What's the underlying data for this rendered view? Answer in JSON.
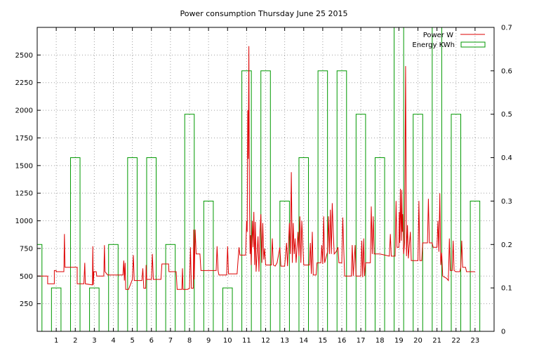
{
  "chart_data": {
    "type": "line",
    "title": "Power consumption Thursday June 25 2015",
    "x_ticks": [
      1,
      2,
      3,
      4,
      5,
      6,
      7,
      8,
      9,
      10,
      11,
      12,
      13,
      14,
      15,
      16,
      17,
      18,
      19,
      20,
      21,
      22,
      23
    ],
    "xlim": [
      0,
      24
    ],
    "ylim": [
      0,
      2750
    ],
    "y_ticks": [
      250,
      500,
      750,
      1000,
      1250,
      1500,
      1750,
      2000,
      2250,
      2500
    ],
    "y2lim": [
      0,
      0.7
    ],
    "y2_ticks": [
      0,
      0.1,
      0.2,
      0.3,
      0.4,
      0.5,
      0.6,
      0.7
    ],
    "grid": true,
    "legend_position": "top-right",
    "colors": {
      "power": "#dd0000",
      "energy": "#009900"
    },
    "series": [
      {
        "name": "Power W",
        "type": "line",
        "axis": "left",
        "points": [
          [
            0.0,
            500
          ],
          [
            0.55,
            500
          ],
          [
            0.55,
            430
          ],
          [
            0.9,
            430
          ],
          [
            0.9,
            550
          ],
          [
            1.0,
            550
          ],
          [
            1.0,
            540
          ],
          [
            1.4,
            540
          ],
          [
            1.43,
            880
          ],
          [
            1.46,
            580
          ],
          [
            2.1,
            580
          ],
          [
            2.1,
            430
          ],
          [
            2.45,
            430
          ],
          [
            2.5,
            620
          ],
          [
            2.53,
            430
          ],
          [
            2.9,
            420
          ],
          [
            2.92,
            770
          ],
          [
            2.95,
            420
          ],
          [
            2.98,
            540
          ],
          [
            3.1,
            540
          ],
          [
            3.13,
            500
          ],
          [
            3.5,
            500
          ],
          [
            3.53,
            780
          ],
          [
            3.56,
            540
          ],
          [
            3.7,
            510
          ],
          [
            4.2,
            510
          ],
          [
            4.5,
            510
          ],
          [
            4.55,
            640
          ],
          [
            4.58,
            460
          ],
          [
            4.62,
            620
          ],
          [
            4.65,
            380
          ],
          [
            4.8,
            380
          ],
          [
            5.0,
            470
          ],
          [
            5.05,
            690
          ],
          [
            5.1,
            460
          ],
          [
            5.5,
            460
          ],
          [
            5.55,
            570
          ],
          [
            5.6,
            390
          ],
          [
            5.7,
            390
          ],
          [
            5.72,
            600
          ],
          [
            5.75,
            470
          ],
          [
            6.0,
            470
          ],
          [
            6.05,
            700
          ],
          [
            6.1,
            470
          ],
          [
            6.5,
            470
          ],
          [
            6.55,
            610
          ],
          [
            6.9,
            610
          ],
          [
            6.92,
            540
          ],
          [
            7.3,
            540
          ],
          [
            7.35,
            380
          ],
          [
            7.6,
            380
          ],
          [
            7.63,
            570
          ],
          [
            7.66,
            380
          ],
          [
            7.9,
            380
          ],
          [
            8.0,
            390
          ],
          [
            8.05,
            760
          ],
          [
            8.1,
            390
          ],
          [
            8.2,
            390
          ],
          [
            8.22,
            920
          ],
          [
            8.25,
            470
          ],
          [
            8.3,
            920
          ],
          [
            8.35,
            700
          ],
          [
            8.55,
            700
          ],
          [
            8.6,
            550
          ],
          [
            9.4,
            550
          ],
          [
            9.45,
            770
          ],
          [
            9.5,
            550
          ],
          [
            9.55,
            510
          ],
          [
            9.95,
            510
          ],
          [
            10.0,
            770
          ],
          [
            10.05,
            520
          ],
          [
            10.5,
            520
          ],
          [
            10.6,
            760
          ],
          [
            10.65,
            690
          ],
          [
            10.95,
            690
          ],
          [
            11.0,
            1000
          ],
          [
            11.03,
            900
          ],
          [
            11.06,
            2000
          ],
          [
            11.09,
            1560
          ],
          [
            11.12,
            2580
          ],
          [
            11.15,
            1200
          ],
          [
            11.18,
            700
          ],
          [
            11.21,
            870
          ],
          [
            11.24,
            600
          ],
          [
            11.3,
            1000
          ],
          [
            11.34,
            760
          ],
          [
            11.38,
            1080
          ],
          [
            11.42,
            600
          ],
          [
            11.46,
            990
          ],
          [
            11.5,
            540
          ],
          [
            11.55,
            700
          ],
          [
            11.6,
            860
          ],
          [
            11.65,
            540
          ],
          [
            11.7,
            900
          ],
          [
            11.75,
            1060
          ],
          [
            11.8,
            620
          ],
          [
            11.85,
            980
          ],
          [
            11.9,
            650
          ],
          [
            11.95,
            750
          ],
          [
            12.0,
            600
          ],
          [
            12.3,
            600
          ],
          [
            12.35,
            840
          ],
          [
            12.4,
            600
          ],
          [
            12.5,
            590
          ],
          [
            12.6,
            620
          ],
          [
            12.75,
            760
          ],
          [
            12.8,
            590
          ],
          [
            13.0,
            590
          ],
          [
            13.1,
            800
          ],
          [
            13.15,
            590
          ],
          [
            13.25,
            980
          ],
          [
            13.3,
            700
          ],
          [
            13.35,
            1440
          ],
          [
            13.4,
            620
          ],
          [
            13.45,
            980
          ],
          [
            13.5,
            700
          ],
          [
            13.55,
            840
          ],
          [
            13.6,
            620
          ],
          [
            13.7,
            900
          ],
          [
            13.75,
            680
          ],
          [
            13.8,
            1040
          ],
          [
            13.85,
            620
          ],
          [
            13.9,
            1000
          ],
          [
            14.0,
            600
          ],
          [
            14.3,
            600
          ],
          [
            14.35,
            800
          ],
          [
            14.4,
            520
          ],
          [
            14.45,
            900
          ],
          [
            14.5,
            510
          ],
          [
            14.65,
            510
          ],
          [
            14.7,
            620
          ],
          [
            14.9,
            620
          ],
          [
            14.95,
            780
          ],
          [
            15.0,
            610
          ],
          [
            15.05,
            1040
          ],
          [
            15.1,
            620
          ],
          [
            15.25,
            720
          ],
          [
            15.3,
            1040
          ],
          [
            15.35,
            700
          ],
          [
            15.4,
            1100
          ],
          [
            15.45,
            700
          ],
          [
            15.5,
            1160
          ],
          [
            15.55,
            900
          ],
          [
            15.6,
            700
          ],
          [
            15.7,
            720
          ],
          [
            15.8,
            760
          ],
          [
            15.85,
            620
          ],
          [
            16.0,
            620
          ],
          [
            16.05,
            1030
          ],
          [
            16.1,
            760
          ],
          [
            16.15,
            500
          ],
          [
            16.5,
            500
          ],
          [
            16.55,
            780
          ],
          [
            16.6,
            500
          ],
          [
            16.7,
            780
          ],
          [
            16.75,
            500
          ],
          [
            17.0,
            500
          ],
          [
            17.05,
            820
          ],
          [
            17.1,
            490
          ],
          [
            17.15,
            840
          ],
          [
            17.2,
            500
          ],
          [
            17.25,
            620
          ],
          [
            17.5,
            620
          ],
          [
            17.55,
            1130
          ],
          [
            17.6,
            700
          ],
          [
            17.65,
            1040
          ],
          [
            17.7,
            700
          ],
          [
            17.8,
            700
          ],
          [
            18.0,
            700
          ],
          [
            18.5,
            680
          ],
          [
            18.55,
            880
          ],
          [
            18.6,
            680
          ],
          [
            18.8,
            680
          ],
          [
            18.85,
            1180
          ],
          [
            18.9,
            760
          ],
          [
            19.0,
            760
          ],
          [
            19.02,
            1080
          ],
          [
            19.05,
            800
          ],
          [
            19.08,
            1290
          ],
          [
            19.1,
            1050
          ],
          [
            19.13,
            820
          ],
          [
            19.15,
            1280
          ],
          [
            19.18,
            900
          ],
          [
            19.2,
            1060
          ],
          [
            19.25,
            700
          ],
          [
            19.3,
            800
          ],
          [
            19.35,
            2400
          ],
          [
            19.4,
            680
          ],
          [
            19.45,
            960
          ],
          [
            19.5,
            660
          ],
          [
            19.6,
            900
          ],
          [
            19.65,
            640
          ],
          [
            20.0,
            640
          ],
          [
            20.05,
            1180
          ],
          [
            20.1,
            640
          ],
          [
            20.2,
            640
          ],
          [
            20.25,
            800
          ],
          [
            20.5,
            800
          ],
          [
            20.55,
            1200
          ],
          [
            20.6,
            800
          ],
          [
            20.75,
            800
          ],
          [
            20.8,
            760
          ],
          [
            21.0,
            760
          ],
          [
            21.05,
            1000
          ],
          [
            21.1,
            720
          ],
          [
            21.15,
            1250
          ],
          [
            21.2,
            600
          ],
          [
            21.25,
            710
          ],
          [
            21.3,
            500
          ],
          [
            21.5,
            480
          ],
          [
            21.6,
            460
          ],
          [
            21.65,
            840
          ],
          [
            21.7,
            550
          ],
          [
            21.8,
            550
          ],
          [
            21.85,
            820
          ],
          [
            21.9,
            550
          ],
          [
            22.0,
            540
          ],
          [
            22.2,
            540
          ],
          [
            22.25,
            580
          ],
          [
            22.3,
            820
          ],
          [
            22.35,
            580
          ],
          [
            22.5,
            580
          ],
          [
            22.55,
            540
          ],
          [
            23.0,
            540
          ]
        ]
      },
      {
        "name": "Energy KWh",
        "type": "step",
        "axis": "right",
        "values": [
          0.2,
          0.1,
          0.4,
          0.1,
          0.2,
          0.4,
          0.4,
          0.2,
          0.5,
          0.3,
          0.1,
          0.6,
          0.6,
          0.3,
          0.4,
          0.6,
          0.6,
          0.5,
          0.4,
          0.7,
          0.5,
          0.7,
          0.5,
          0.3
        ]
      }
    ]
  }
}
